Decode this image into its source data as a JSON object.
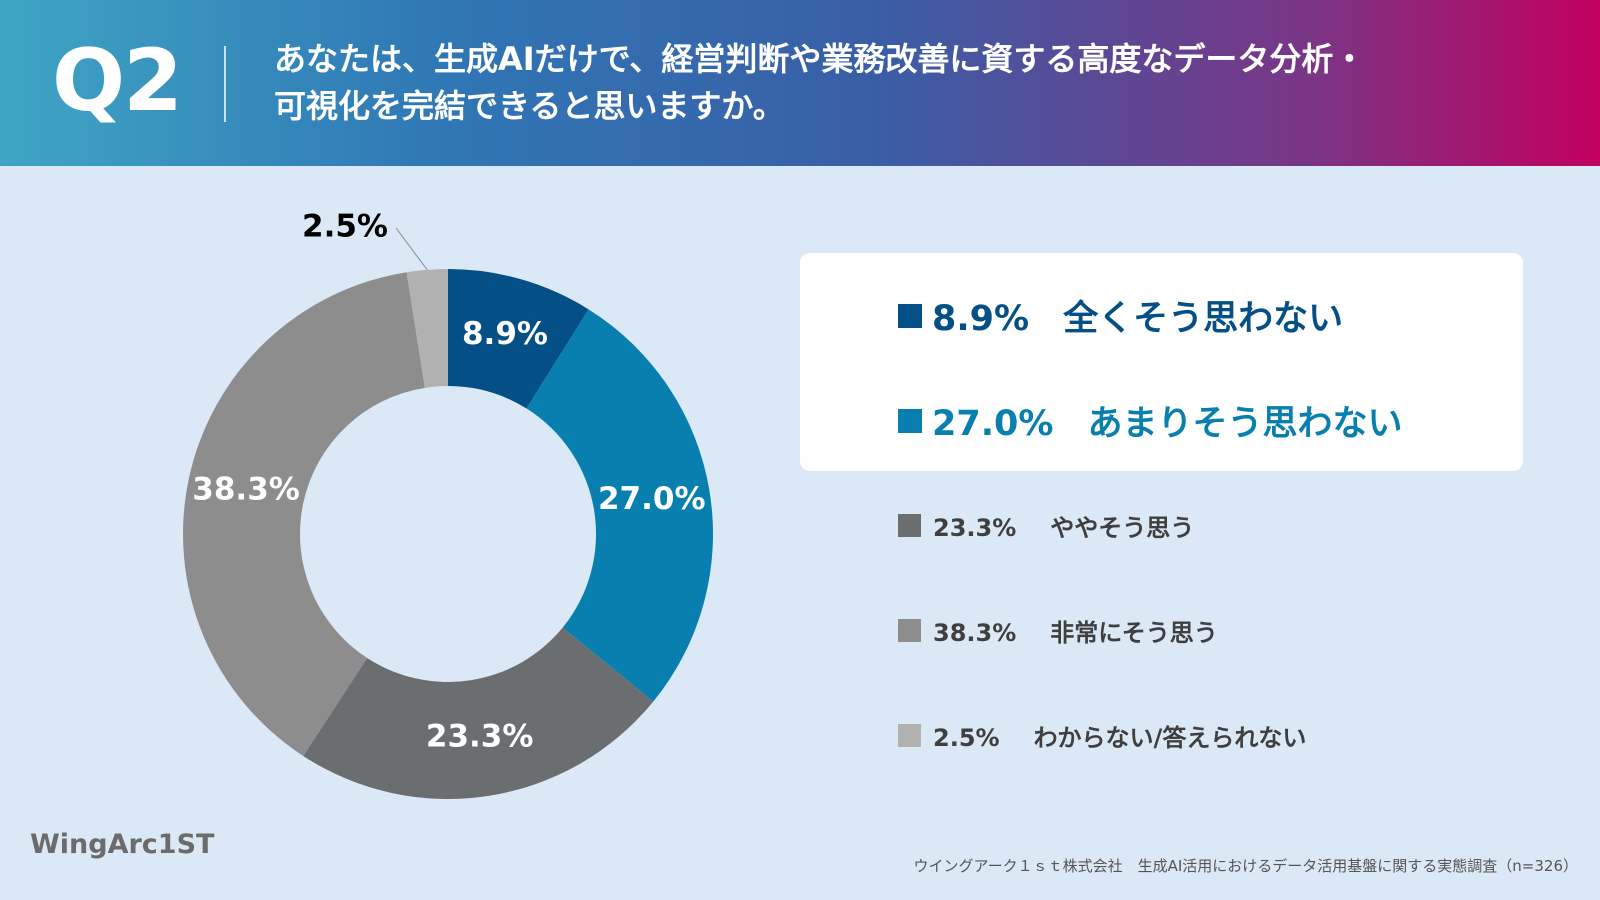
{
  "header": {
    "q_label": "Q2",
    "question_line1": "あなたは、生成AIだけで、経営判断や業務改善に資する高度なデータ分析・",
    "question_line2": "可視化を完結できると思いますか。"
  },
  "chart_data": {
    "type": "pie",
    "categories": [
      "全くそう思わない",
      "あまりそう思わない",
      "ややそう思う",
      "非常にそう思う",
      "わからない/答えられない"
    ],
    "values": [
      8.9,
      27.0,
      23.3,
      38.3,
      2.5
    ],
    "value_labels": [
      "8.9%",
      "27.0%",
      "23.3%",
      "38.3%",
      "2.5%"
    ],
    "colors": [
      "#034f86",
      "#097fb0",
      "#6b6e71",
      "#8d8d8d",
      "#b1b1b1"
    ],
    "legend_placement": "right"
  },
  "legend": [
    {
      "value": "8.9%",
      "label": "全くそう思わない",
      "color": "#034f86"
    },
    {
      "value": "27.0%",
      "label": "あまりそう思わない",
      "color": "#097fb0"
    },
    {
      "value": "23.3%",
      "label": "ややそう思う",
      "color": "#6b6e71"
    },
    {
      "value": "38.3%",
      "label": "非常にそう思う",
      "color": "#8d8d8d"
    },
    {
      "value": "2.5%",
      "label": "わからない/答えられない",
      "color": "#b1b1b1"
    }
  ],
  "footer": {
    "logo": "WingArc1ST",
    "note": "ウイングアーク１ｓｔ株式会社　生成AI活用におけるデータ活用基盤に関する実態調査（n=326）"
  }
}
